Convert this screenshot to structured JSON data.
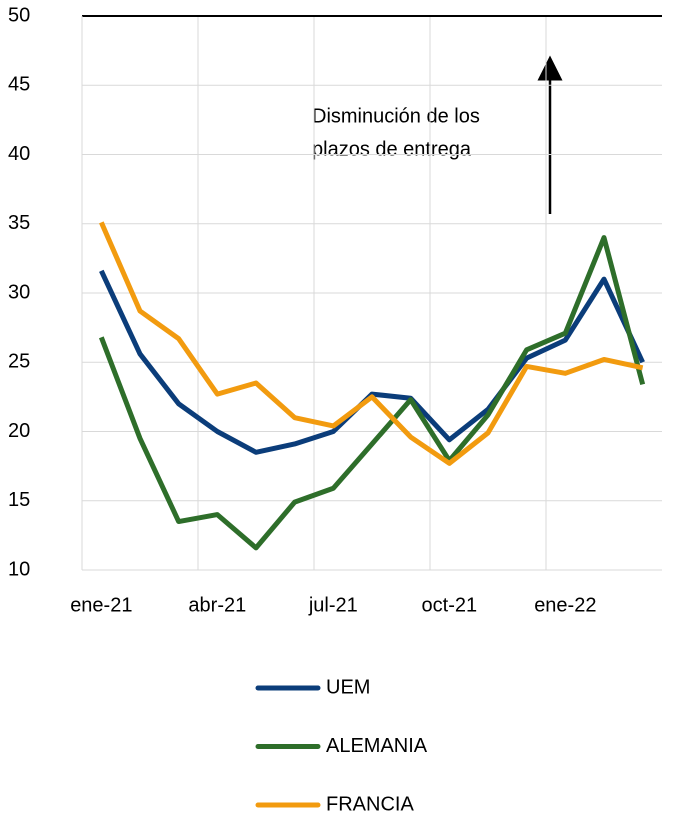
{
  "chart_data": {
    "type": "line",
    "categories": [
      "ene-21",
      null,
      null,
      "abr-21",
      null,
      null,
      "jul-21",
      null,
      null,
      "oct-21",
      null,
      null,
      "ene-22",
      null,
      null
    ],
    "series": [
      {
        "name": "UEM",
        "color": "#0b3d7a",
        "values": [
          31.6,
          25.6,
          22.0,
          20.0,
          18.5,
          19.1,
          20.0,
          22.7,
          22.4,
          19.4,
          21.6,
          25.3,
          26.6,
          31.0,
          25.0
        ]
      },
      {
        "name": "ALEMANIA",
        "color": "#2e6e2a",
        "values": [
          26.8,
          19.5,
          13.5,
          14.0,
          11.6,
          14.9,
          15.9,
          19.1,
          22.3,
          17.9,
          21.2,
          25.9,
          27.1,
          34.0,
          23.4
        ]
      },
      {
        "name": "FRANCIA",
        "color": "#f29b0f",
        "values": [
          35.1,
          28.7,
          26.7,
          22.7,
          23.5,
          21.0,
          20.4,
          22.5,
          19.6,
          17.7,
          19.9,
          24.7,
          24.2,
          25.2,
          24.6
        ]
      }
    ],
    "annotation": [
      "Disminución de los",
      "plazos de entrega"
    ],
    "ylim": [
      10,
      50
    ],
    "yticks": [
      10,
      15,
      20,
      25,
      30,
      35,
      40,
      45,
      50
    ],
    "grid": true
  }
}
